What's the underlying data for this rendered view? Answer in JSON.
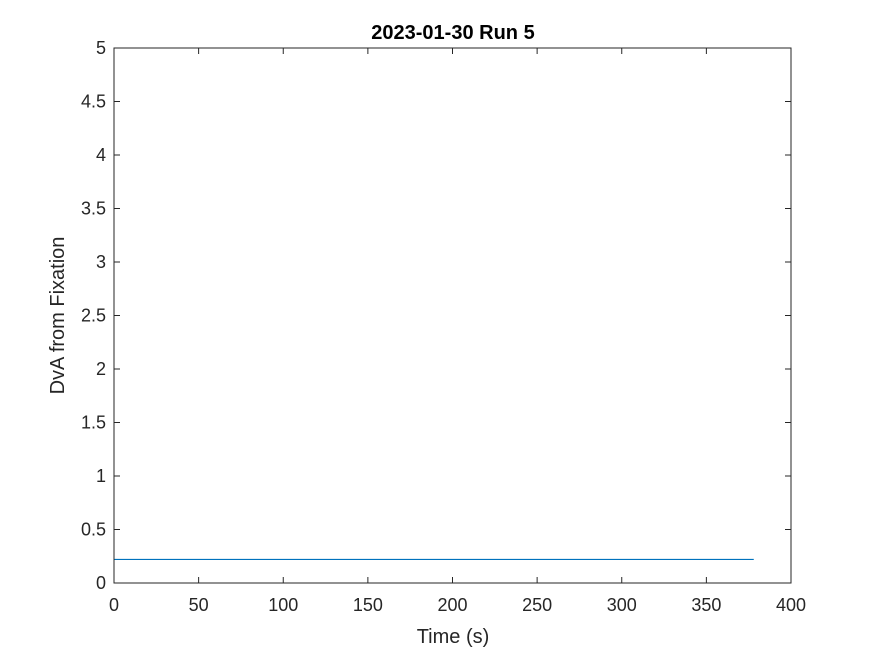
{
  "chart_data": {
    "type": "line",
    "title": "2023-01-30 Run 5",
    "xlabel": "Time (s)",
    "ylabel": "DvA from Fixation",
    "xlim": [
      0,
      400
    ],
    "ylim": [
      0,
      5
    ],
    "x_ticks": [
      0,
      50,
      100,
      150,
      200,
      250,
      300,
      350,
      400
    ],
    "x_tick_labels": [
      "0",
      "50",
      "100",
      "150",
      "200",
      "250",
      "300",
      "350",
      "400"
    ],
    "y_ticks": [
      0,
      0.5,
      1,
      1.5,
      2,
      2.5,
      3,
      3.5,
      4,
      4.5,
      5
    ],
    "y_tick_labels": [
      "0",
      "0.5",
      "1",
      "1.5",
      "2",
      "2.5",
      "3",
      "3.5",
      "4",
      "4.5",
      "5"
    ],
    "grid": false,
    "series": [
      {
        "color": "#0072BD",
        "x": [
          0,
          378
        ],
        "y": [
          0.22,
          0.22
        ]
      }
    ]
  }
}
